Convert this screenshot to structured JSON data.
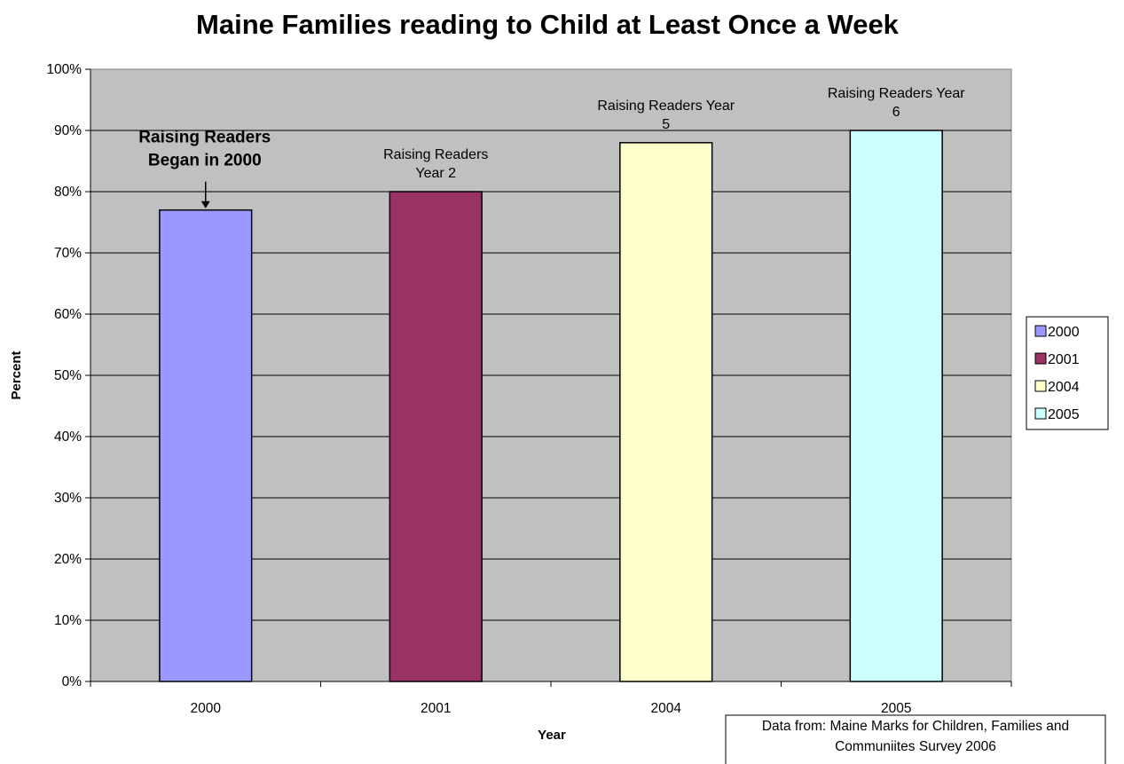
{
  "chart_data": {
    "type": "bar",
    "title": "Maine Families reading to Child at Least Once a Week",
    "xlabel": "Year",
    "ylabel": "Percent",
    "categories": [
      "2000",
      "2001",
      "2004",
      "2005"
    ],
    "values": [
      77,
      80,
      88,
      90
    ],
    "ylim": [
      0,
      100
    ],
    "yticks": [
      "0%",
      "10%",
      "20%",
      "30%",
      "40%",
      "50%",
      "60%",
      "70%",
      "80%",
      "90%",
      "100%"
    ],
    "grid": true,
    "colors": [
      "#9999ff",
      "#993366",
      "#ffffcc",
      "#ccffff"
    ],
    "plot_background": "#c0c0c0",
    "legend": {
      "position": "right",
      "entries": [
        "2000",
        "2001",
        "2004",
        "2005"
      ]
    },
    "annotations": [
      {
        "category": "2000",
        "lines": [
          "Raising Readers",
          "Began in 2000"
        ],
        "bold": true,
        "arrow": true
      },
      {
        "category": "2001",
        "lines": [
          "Raising Readers",
          "Year 2"
        ],
        "bold": false,
        "arrow": false
      },
      {
        "category": "2004",
        "lines": [
          "Raising Readers Year",
          "5"
        ],
        "bold": false,
        "arrow": false
      },
      {
        "category": "2005",
        "lines": [
          "Raising Readers Year",
          "6"
        ],
        "bold": false,
        "arrow": false
      }
    ],
    "source": [
      "Data from: Maine Marks for Children, Families and",
      "Communiites Survey 2006"
    ]
  }
}
